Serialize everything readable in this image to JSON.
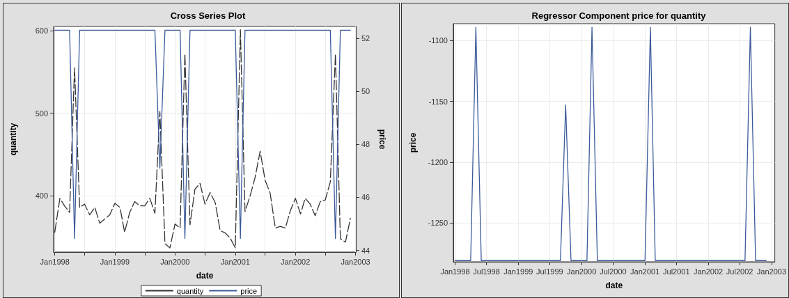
{
  "chart_data": [
    {
      "type": "line",
      "title": "Cross Series Plot",
      "xlabel": "date",
      "ylabel": "quantity",
      "y2label": "price",
      "x": [
        "1998-01",
        "1998-02",
        "1998-03",
        "1998-04",
        "1998-05",
        "1998-06",
        "1998-07",
        "1998-08",
        "1998-09",
        "1998-10",
        "1998-11",
        "1998-12",
        "1999-01",
        "1999-02",
        "1999-03",
        "1999-04",
        "1999-05",
        "1999-06",
        "1999-07",
        "1999-08",
        "1999-09",
        "1999-10",
        "1999-11",
        "1999-12",
        "2000-01",
        "2000-02",
        "2000-03",
        "2000-04",
        "2000-05",
        "2000-06",
        "2000-07",
        "2000-08",
        "2000-09",
        "2000-10",
        "2000-11",
        "2000-12",
        "2001-01",
        "2001-02",
        "2001-03",
        "2001-04",
        "2001-05",
        "2001-06",
        "2001-07",
        "2001-08",
        "2001-09",
        "2001-10",
        "2001-11",
        "2001-12",
        "2002-01",
        "2002-02",
        "2002-03",
        "2002-04",
        "2002-05",
        "2002-06",
        "2002-07",
        "2002-08",
        "2002-09",
        "2002-10",
        "2002-11",
        "2002-12"
      ],
      "series": [
        {
          "name": "quantity",
          "color": "#333333",
          "line_style": "dashed",
          "values": [
            356,
            397,
            388,
            380,
            555,
            386,
            390,
            377,
            386,
            367,
            372,
            377,
            391,
            386,
            356,
            380,
            393,
            388,
            388,
            397,
            379,
            502,
            342,
            337,
            366,
            361,
            572,
            365,
            408,
            415,
            390,
            404,
            392,
            358,
            355,
            349,
            337,
            601,
            381,
            400,
            422,
            454,
            419,
            403,
            361,
            363,
            361,
            382,
            397,
            378,
            397,
            390,
            376,
            393,
            395,
            417,
            572,
            348,
            344,
            373
          ]
        },
        {
          "name": "price",
          "color": "#3b5a9a",
          "axis": "y2",
          "line_style": "solid",
          "values": [
            52.3,
            52.3,
            52.3,
            52.3,
            44.45,
            52.3,
            52.3,
            52.3,
            52.3,
            52.3,
            52.3,
            52.3,
            52.3,
            52.3,
            52.3,
            52.3,
            52.3,
            52.3,
            52.3,
            52.3,
            52.3,
            47.1,
            52.3,
            52.3,
            52.3,
            52.3,
            44.45,
            52.3,
            52.3,
            52.3,
            52.3,
            52.3,
            52.3,
            52.3,
            52.3,
            52.3,
            52.3,
            44.45,
            52.3,
            52.3,
            52.3,
            52.3,
            52.3,
            52.3,
            52.3,
            52.3,
            52.3,
            52.3,
            52.3,
            52.3,
            52.3,
            52.3,
            52.3,
            52.3,
            52.3,
            52.3,
            44.45,
            52.3,
            52.3,
            52.3
          ]
        }
      ],
      "xlim": [
        "1997-12-25",
        "2003-01-03"
      ],
      "xticks": [
        {
          "value": "1998-01",
          "label": "Jan1998"
        },
        {
          "value": "1998-07",
          "label": null
        },
        {
          "value": "1999-01",
          "label": "Jan1999"
        },
        {
          "value": "1999-07",
          "label": null
        },
        {
          "value": "2000-01",
          "label": "Jan2000"
        },
        {
          "value": "2000-07",
          "label": null
        },
        {
          "value": "2001-01",
          "label": "Jan2001"
        },
        {
          "value": "2001-07",
          "label": null
        },
        {
          "value": "2002-01",
          "label": "Jan2002"
        },
        {
          "value": "2002-07",
          "label": null
        },
        {
          "value": "2003-01",
          "label": "Jan2003"
        }
      ],
      "ylim": [
        332,
        605
      ],
      "yticks": [
        400,
        500,
        600
      ],
      "y2lim": [
        43.94,
        52.44
      ],
      "y2ticks": [
        44,
        46,
        48,
        50,
        52
      ],
      "grid": true,
      "legend": "bottom",
      "marker": "none"
    },
    {
      "type": "line",
      "title": "Regressor Component price for quantity",
      "xlabel": "date",
      "ylabel": "price",
      "x": [
        "1998-01",
        "1998-02",
        "1998-03",
        "1998-04",
        "1998-05",
        "1998-06",
        "1998-07",
        "1998-08",
        "1998-09",
        "1998-10",
        "1998-11",
        "1998-12",
        "1999-01",
        "1999-02",
        "1999-03",
        "1999-04",
        "1999-05",
        "1999-06",
        "1999-07",
        "1999-08",
        "1999-09",
        "1999-10",
        "1999-11",
        "1999-12",
        "2000-01",
        "2000-02",
        "2000-03",
        "2000-04",
        "2000-05",
        "2000-06",
        "2000-07",
        "2000-08",
        "2000-09",
        "2000-10",
        "2000-11",
        "2000-12",
        "2001-01",
        "2001-02",
        "2001-03",
        "2001-04",
        "2001-05",
        "2001-06",
        "2001-07",
        "2001-08",
        "2001-09",
        "2001-10",
        "2001-11",
        "2001-12",
        "2002-01",
        "2002-02",
        "2002-03",
        "2002-04",
        "2002-05",
        "2002-06",
        "2002-07",
        "2002-08",
        "2002-09",
        "2002-10",
        "2002-11",
        "2002-12"
      ],
      "series": [
        {
          "color": "#3b5a9a",
          "values": [
            -1281,
            -1281,
            -1281,
            -1281,
            -1089,
            -1281,
            -1281,
            -1281,
            -1281,
            -1281,
            -1281,
            -1281,
            -1281,
            -1281,
            -1281,
            -1281,
            -1281,
            -1281,
            -1281,
            -1281,
            -1281,
            -1153,
            -1281,
            -1281,
            -1281,
            -1281,
            -1089,
            -1281,
            -1281,
            -1281,
            -1281,
            -1281,
            -1281,
            -1281,
            -1281,
            -1281,
            -1281,
            -1089,
            -1281,
            -1281,
            -1281,
            -1281,
            -1281,
            -1281,
            -1281,
            -1281,
            -1281,
            -1281,
            -1281,
            -1281,
            -1281,
            -1281,
            -1281,
            -1281,
            -1281,
            -1281,
            -1089,
            -1281,
            -1281,
            -1281
          ]
        }
      ],
      "xlim": [
        "1997-12-22",
        "2003-01-20"
      ],
      "xticks": [
        {
          "value": "1998-01",
          "label": "Jan1998"
        },
        {
          "value": "1998-07",
          "label": "Jul1998"
        },
        {
          "value": "1999-01",
          "label": "Jan1999"
        },
        {
          "value": "1999-07",
          "label": "Jul1999"
        },
        {
          "value": "2000-01",
          "label": "Jan2000"
        },
        {
          "value": "2000-07",
          "label": "Jul2000"
        },
        {
          "value": "2001-01",
          "label": "Jan2001"
        },
        {
          "value": "2001-07",
          "label": "Jul2001"
        },
        {
          "value": "2002-01",
          "label": "Jan2002"
        },
        {
          "value": "2002-07",
          "label": "Jul2002"
        },
        {
          "value": "2003-01",
          "label": "Jan2003"
        }
      ],
      "ylim": [
        -1282,
        -1086
      ],
      "yticks": [
        -1250,
        -1200,
        -1150,
        -1100
      ],
      "grid": true,
      "marker": "none"
    }
  ]
}
